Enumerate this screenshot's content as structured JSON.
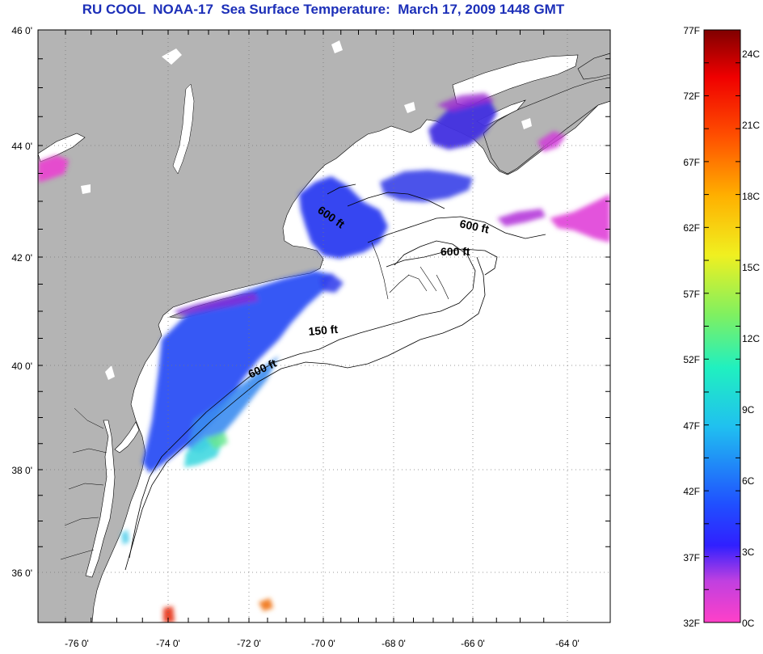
{
  "title": "RU COOL  NOAA-17  Sea Surface Temperature:  March 17, 2009 1448 GMT",
  "map": {
    "lon_range": [
      -77,
      -63
    ],
    "lat_range": [
      35,
      46
    ],
    "lat_labels": [
      {
        "value": 46,
        "label": "46 0'"
      },
      {
        "value": 44,
        "label": "44 0'"
      },
      {
        "value": 42,
        "label": "42 0'"
      },
      {
        "value": 40,
        "label": "40 0'"
      },
      {
        "value": 38,
        "label": "38 0'"
      },
      {
        "value": 36,
        "label": "36 0'"
      }
    ],
    "lon_labels": [
      {
        "value": -76,
        "label": "-76 0'"
      },
      {
        "value": -74,
        "label": "-74 0'"
      },
      {
        "value": -72,
        "label": "-72 0'"
      },
      {
        "value": -70,
        "label": "-70 0'"
      },
      {
        "value": -68,
        "label": "-68 0'"
      },
      {
        "value": -66,
        "label": "-66 0'"
      },
      {
        "value": -64,
        "label": "-64 0'"
      }
    ],
    "contour_labels": [
      "600 ft",
      "600 ft",
      "600 ft",
      "150 ft",
      "600 ft"
    ],
    "land_color": "#b4b4b4",
    "grid_lines": "dotted"
  },
  "colorbar": {
    "f_labels": [
      "77F",
      "72F",
      "67F",
      "62F",
      "57F",
      "52F",
      "47F",
      "42F",
      "37F",
      "32F"
    ],
    "c_labels": [
      "24C",
      "21C",
      "18C",
      "15C",
      "12C",
      "9C",
      "6C",
      "3C",
      "0C"
    ]
  }
}
